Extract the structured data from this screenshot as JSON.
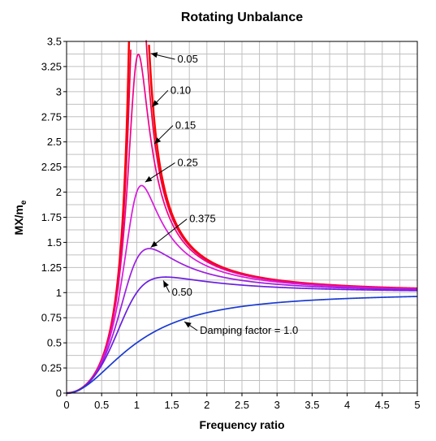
{
  "chart_data": {
    "type": "line",
    "title": "Rotating Unbalance",
    "xlabel": "Frequency ratio",
    "ylabel_main": "MX/m",
    "ylabel_sub": "e",
    "xlim": [
      0,
      5
    ],
    "ylim": [
      0,
      3.5
    ],
    "grid": true,
    "x_ticks": [
      "0",
      "0.5",
      "1",
      "1.5",
      "2",
      "2.5",
      "3",
      "3.5",
      "4",
      "4.5",
      "5"
    ],
    "y_ticks": [
      "0",
      "0.25",
      "0.5",
      "0.75",
      "1",
      "1.25",
      "1.5",
      "1.75",
      "2",
      "2.25",
      "2.5",
      "2.75",
      "3",
      "3.25",
      "3.5"
    ],
    "series": [
      {
        "zeta": 0.05,
        "color": "#ff0000"
      },
      {
        "zeta": 0.1,
        "color": "#e8004a"
      },
      {
        "zeta": 0.15,
        "color": "#f0008c"
      },
      {
        "zeta": 0.25,
        "color": "#d81adc"
      },
      {
        "zeta": 0.375,
        "color": "#9d1ee0"
      },
      {
        "zeta": 0.5,
        "color": "#6a1ee0"
      },
      {
        "zeta": 1.0,
        "color": "#1a3ad2"
      }
    ],
    "annotations": [
      {
        "text": "0.05",
        "arrow_x": 1.2,
        "arrow_y": 3.38,
        "text_x": 1.58,
        "text_y": 3.29
      },
      {
        "text": "0.10",
        "arrow_x": 1.22,
        "arrow_y": 2.85,
        "text_x": 1.48,
        "text_y": 2.98
      },
      {
        "text": "0.15",
        "arrow_x": 1.25,
        "arrow_y": 2.48,
        "text_x": 1.55,
        "text_y": 2.63
      },
      {
        "text": "0.25",
        "arrow_x": 1.12,
        "arrow_y": 2.1,
        "text_x": 1.58,
        "text_y": 2.26
      },
      {
        "text": "0.375",
        "arrow_x": 1.2,
        "arrow_y": 1.45,
        "text_x": 1.75,
        "text_y": 1.7
      },
      {
        "text": "0.50",
        "arrow_x": 1.38,
        "arrow_y": 1.12,
        "text_x": 1.5,
        "text_y": 0.97
      },
      {
        "text": "Damping factor = 1.0",
        "arrow_x": 1.68,
        "arrow_y": 0.71,
        "text_x": 1.9,
        "text_y": 0.59
      }
    ]
  }
}
